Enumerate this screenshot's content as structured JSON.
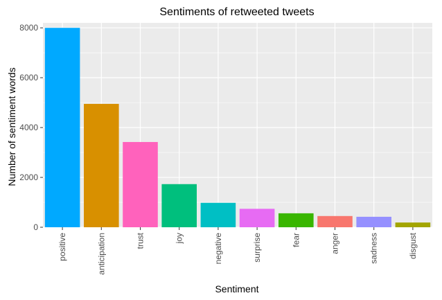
{
  "chart_data": {
    "type": "bar",
    "title": "Sentiments of retweeted tweets",
    "xlabel": "Sentiment",
    "ylabel": "Number of sentiment words",
    "categories": [
      "positive",
      "anticipation",
      "trust",
      "joy",
      "negative",
      "surprise",
      "fear",
      "anger",
      "sadness",
      "disgust"
    ],
    "values": [
      8000,
      4950,
      3420,
      1730,
      980,
      740,
      560,
      450,
      420,
      190
    ],
    "colors": [
      "#00A9FF",
      "#D89000",
      "#FF62BC",
      "#00BF7D",
      "#00BFC4",
      "#E76BF3",
      "#39B600",
      "#F8766D",
      "#9590FF",
      "#A3A500"
    ],
    "ylim": [
      0,
      8200
    ],
    "yticks": [
      "0",
      "2000",
      "4000",
      "6000",
      "8000"
    ],
    "ytick_values": [
      0,
      2000,
      4000,
      6000,
      8000
    ],
    "grid": true,
    "panel_background": "#EBEBEB",
    "grid_color": "#FFFFFF",
    "legend": "none"
  }
}
